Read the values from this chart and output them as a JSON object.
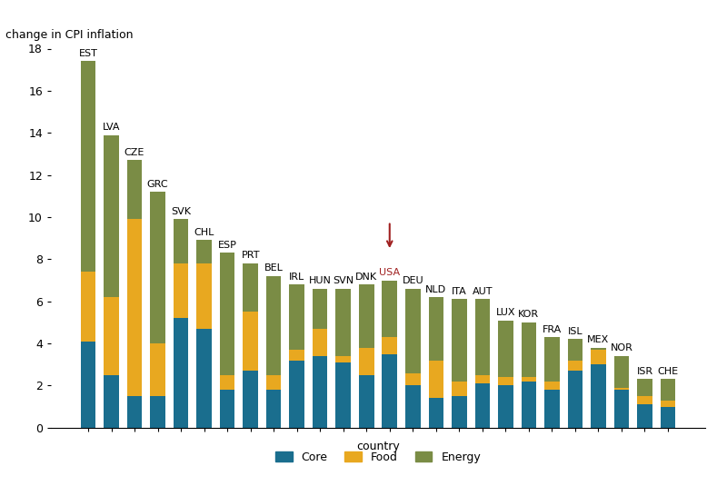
{
  "countries": [
    "EST",
    "LVA",
    "CZE",
    "GRC",
    "SVK",
    "CHL",
    "ESP",
    "PRT",
    "BEL",
    "IRL",
    "HUN",
    "SVN",
    "DNK",
    "USA",
    "DEU",
    "NLD",
    "ITA",
    "AUT",
    "LUX",
    "KOR",
    "FRA",
    "ISL",
    "MEX",
    "NOR",
    "ISR",
    "CHE"
  ],
  "core": [
    4.1,
    2.5,
    1.5,
    1.5,
    5.2,
    4.7,
    1.8,
    2.7,
    1.8,
    3.2,
    3.4,
    3.1,
    2.5,
    3.5,
    2.0,
    1.4,
    1.5,
    2.1,
    2.0,
    2.2,
    1.8,
    2.7,
    3.0,
    1.8,
    1.1,
    1.0
  ],
  "food": [
    3.3,
    3.7,
    8.4,
    2.5,
    2.6,
    3.1,
    0.7,
    2.8,
    0.7,
    0.5,
    1.3,
    0.3,
    1.3,
    0.8,
    0.6,
    1.8,
    0.7,
    0.4,
    0.4,
    0.2,
    0.4,
    0.5,
    0.7,
    0.1,
    0.4,
    0.3
  ],
  "energy": [
    10.0,
    7.7,
    2.8,
    7.2,
    2.1,
    1.1,
    5.8,
    2.3,
    4.7,
    3.1,
    1.9,
    3.2,
    3.0,
    2.7,
    4.0,
    3.0,
    3.9,
    3.6,
    2.7,
    2.6,
    2.1,
    1.0,
    0.1,
    1.5,
    0.8,
    1.0
  ],
  "core_color": "#1a6e8e",
  "food_color": "#e8a820",
  "energy_color": "#7a8c45",
  "top_left_label": "change in CPI inflation",
  "xlabel": "country",
  "ylim": [
    0,
    18
  ],
  "yticks": [
    0,
    2,
    4,
    6,
    8,
    10,
    12,
    14,
    16,
    18
  ],
  "usa_label_color": "#a02020",
  "arrow_color": "#a02020",
  "background_color": "#ffffff",
  "bar_width": 0.65,
  "label_fontsize": 8,
  "tick_fontsize": 9
}
